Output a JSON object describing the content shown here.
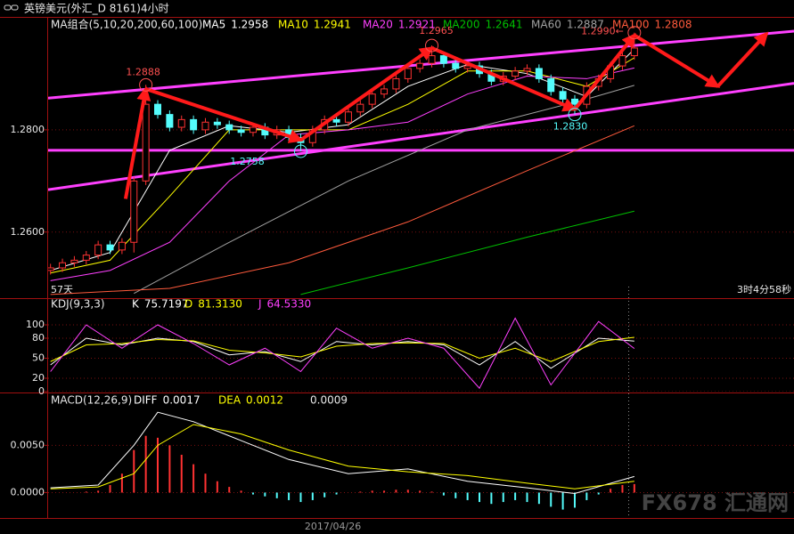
{
  "header": {
    "title": "英镑美元(外汇_D 8161)4小时",
    "status_left": "57天",
    "status_right": "3时4分58秒",
    "watermark": "FX678 汇通网"
  },
  "chart_data": [
    {
      "type": "candlestick",
      "title": "MA组合(5,10,20,200,60,100)",
      "up_color": "#ff3232",
      "down_color": "#54fcfc",
      "open": [
        1.2525,
        1.253,
        1.254,
        1.2545,
        1.2555,
        1.2575,
        1.2565,
        1.258,
        1.27,
        1.285,
        1.283,
        1.2805,
        1.282,
        1.28,
        1.2815,
        1.281,
        1.28,
        1.2795,
        1.2805,
        1.279,
        1.28,
        1.2785,
        1.2775,
        1.28,
        1.282,
        1.2815,
        1.2835,
        1.285,
        1.287,
        1.288,
        1.29,
        1.292,
        1.293,
        1.2945,
        1.293,
        1.292,
        1.2925,
        1.291,
        1.2895,
        1.2905,
        1.2915,
        1.292,
        1.29,
        1.2875,
        1.286,
        1.285,
        1.2885,
        1.29,
        1.2925,
        1.2945
      ],
      "high": [
        1.2538,
        1.2548,
        1.2553,
        1.2563,
        1.2583,
        1.2583,
        1.2588,
        1.2708,
        1.2888,
        1.2858,
        1.2838,
        1.2828,
        1.2828,
        1.2823,
        1.2823,
        1.2818,
        1.2808,
        1.2813,
        1.2813,
        1.2808,
        1.2808,
        1.2793,
        1.2808,
        1.2828,
        1.2828,
        1.2843,
        1.2858,
        1.2878,
        1.2888,
        1.2908,
        1.2928,
        1.2938,
        1.2965,
        1.2953,
        1.2938,
        1.2933,
        1.2933,
        1.2918,
        1.2913,
        1.2923,
        1.2928,
        1.2928,
        1.2908,
        1.2883,
        1.2868,
        1.2893,
        1.2908,
        1.2933,
        1.2953,
        1.299
      ],
      "low": [
        1.2517,
        1.2522,
        1.2532,
        1.2537,
        1.2547,
        1.2557,
        1.2557,
        1.256,
        1.2692,
        1.2822,
        1.2797,
        1.2797,
        1.2792,
        1.2792,
        1.2802,
        1.2792,
        1.2787,
        1.2787,
        1.2782,
        1.2782,
        1.2777,
        1.2758,
        1.2767,
        1.2792,
        1.2807,
        1.2807,
        1.2827,
        1.2842,
        1.2862,
        1.2872,
        1.2892,
        1.2912,
        1.2922,
        1.2922,
        1.2912,
        1.2912,
        1.2902,
        1.2887,
        1.2887,
        1.2897,
        1.2907,
        1.2892,
        1.2867,
        1.2852,
        1.283,
        1.2842,
        1.2877,
        1.2892,
        1.2917,
        1.2937
      ],
      "close": [
        1.253,
        1.254,
        1.2545,
        1.2555,
        1.2575,
        1.2565,
        1.258,
        1.27,
        1.285,
        1.283,
        1.2805,
        1.282,
        1.28,
        1.2815,
        1.281,
        1.28,
        1.2795,
        1.2805,
        1.279,
        1.28,
        1.2785,
        1.2775,
        1.28,
        1.282,
        1.2815,
        1.2835,
        1.285,
        1.287,
        1.288,
        1.29,
        1.292,
        1.293,
        1.2945,
        1.293,
        1.292,
        1.2925,
        1.291,
        1.2895,
        1.2905,
        1.2915,
        1.292,
        1.29,
        1.2875,
        1.286,
        1.285,
        1.2885,
        1.29,
        1.2925,
        1.2945,
        1.296
      ],
      "series": [
        {
          "name": "MA5",
          "color": "#ffffff",
          "x": [
            0,
            5,
            10,
            15,
            20,
            25,
            30,
            35,
            40,
            45,
            49
          ],
          "values": [
            1.2525,
            1.256,
            1.276,
            1.2808,
            1.2795,
            1.281,
            1.2885,
            1.2928,
            1.291,
            1.2865,
            1.2958
          ]
        },
        {
          "name": "MA10",
          "color": "#ffff00",
          "x": [
            0,
            5,
            10,
            15,
            20,
            25,
            30,
            35,
            40,
            45,
            49
          ],
          "values": [
            1.252,
            1.2545,
            1.267,
            1.28,
            1.28,
            1.28,
            1.285,
            1.2915,
            1.2915,
            1.2885,
            1.2941
          ]
        },
        {
          "name": "MA20",
          "color": "#ff40ff",
          "x": [
            0,
            5,
            10,
            15,
            20,
            25,
            30,
            35,
            40,
            45,
            49
          ],
          "values": [
            1.2505,
            1.2525,
            1.258,
            1.27,
            1.279,
            1.28,
            1.2815,
            1.287,
            1.2905,
            1.29,
            1.2921
          ]
        },
        {
          "name": "MA200",
          "color": "#00c000",
          "x": [
            21,
            30,
            40,
            49
          ],
          "values": [
            1.2478,
            1.253,
            1.259,
            1.2641
          ]
        },
        {
          "name": "MA60",
          "color": "#a0a0a0",
          "x": [
            7,
            15,
            25,
            35,
            45,
            49
          ],
          "values": [
            1.248,
            1.258,
            1.27,
            1.28,
            1.286,
            1.2887
          ]
        },
        {
          "name": "MA100",
          "color": "#ff5a3c",
          "x": [
            0,
            10,
            20,
            30,
            40,
            49
          ],
          "values": [
            1.2478,
            1.249,
            1.254,
            1.262,
            1.272,
            1.2808
          ]
        }
      ],
      "trendlines": [
        {
          "color": "#ff40ff",
          "x": [
            -0.2,
            62.4
          ],
          "values": [
            1.2862,
            1.2993
          ]
        },
        {
          "color": "#ff40ff",
          "x": [
            -0.2,
            62.4
          ],
          "values": [
            1.2683,
            1.2891
          ]
        },
        {
          "color": "#ff40ff",
          "x": [
            -0.2,
            62.4
          ],
          "values": [
            1.276,
            1.276
          ]
        }
      ],
      "arrows": {
        "color": "#ff1a1a",
        "x": [
          6.3,
          8,
          21,
          32,
          44,
          49,
          56,
          60.1
        ],
        "values": [
          1.2665,
          1.288,
          1.278,
          1.296,
          1.284,
          1.2985,
          1.2885,
          1.2988
        ]
      },
      "annotations": [
        {
          "label": "1.2888",
          "value": 1.2888,
          "x": 8,
          "color": "#ff5050"
        },
        {
          "label": "1.2758",
          "value": 1.2758,
          "x": 21,
          "color": "#54fcfc"
        },
        {
          "label": "1.2965",
          "value": 1.2965,
          "x": 32,
          "color": "#ff5050"
        },
        {
          "label": "1.2830",
          "value": 1.283,
          "x": 44,
          "color": "#54fcfc"
        },
        {
          "label": "1.2990←",
          "value": 1.299,
          "x": 49,
          "color": "#ff5050"
        }
      ],
      "xlim": [
        -0.2,
        62.4
      ],
      "ylim": [
        1.2476,
        1.2993
      ],
      "yticks": [
        {
          "value": 1.28,
          "label": "1.2800"
        },
        {
          "value": 1.26,
          "label": "1.2600"
        }
      ],
      "grid": true
    },
    {
      "type": "line",
      "title": "KDJ(9,3,3)",
      "series": [
        {
          "name": "K",
          "color": "#ffffff",
          "x": [
            0,
            3,
            6,
            9,
            12,
            15,
            18,
            21,
            24,
            27,
            30,
            33,
            36,
            39,
            42,
            46,
            49
          ],
          "values": [
            40,
            80,
            70,
            80,
            75,
            55,
            60,
            45,
            75,
            70,
            75,
            70,
            40,
            75,
            35,
            80,
            75.7197
          ]
        },
        {
          "name": "D",
          "color": "#ffff00",
          "x": [
            0,
            3,
            6,
            9,
            12,
            15,
            18,
            21,
            24,
            27,
            30,
            33,
            36,
            39,
            42,
            46,
            49
          ],
          "values": [
            45,
            70,
            72,
            78,
            76,
            62,
            58,
            52,
            68,
            72,
            73,
            72,
            50,
            65,
            45,
            75,
            81.313
          ],
          "value_labels": [
            null,
            null,
            null,
            null,
            null,
            null,
            null,
            null,
            null,
            null,
            null,
            null,
            null,
            null,
            null,
            null,
            "81.3130"
          ]
        },
        {
          "name": "J",
          "color": "#ff40ff",
          "x": [
            0,
            3,
            6,
            9,
            12,
            15,
            18,
            21,
            24,
            27,
            30,
            33,
            36,
            39,
            42,
            46,
            49
          ],
          "values": [
            30,
            100,
            65,
            100,
            72,
            40,
            65,
            30,
            95,
            65,
            80,
            65,
            5,
            110,
            10,
            105,
            64.533
          ],
          "value_labels": [
            null,
            null,
            null,
            null,
            null,
            null,
            null,
            null,
            null,
            null,
            null,
            null,
            null,
            null,
            null,
            null,
            "64.5330"
          ]
        }
      ],
      "xlim": [
        -0.2,
        62.4
      ],
      "ylim": [
        0,
        136
      ],
      "yticks": [
        100,
        80,
        50,
        20,
        0
      ],
      "grid": true
    },
    {
      "type": "macd",
      "title": "MACD(12,26,9)",
      "series": [
        {
          "name": "DIFF",
          "color": "#ffffff",
          "x": [
            0,
            4,
            7,
            9,
            12,
            16,
            20,
            25,
            30,
            35,
            40,
            44,
            49
          ],
          "values": [
            0.0005,
            0.0008,
            0.005,
            0.0085,
            0.0075,
            0.0055,
            0.0035,
            0.002,
            0.0025,
            0.0012,
            0.0005,
            -0.0001,
            0.0017
          ]
        },
        {
          "name": "DEA",
          "color": "#ffff00",
          "x": [
            0,
            4,
            7,
            9,
            12,
            16,
            20,
            25,
            30,
            35,
            40,
            44,
            49
          ],
          "values": [
            0.0004,
            0.0006,
            0.002,
            0.005,
            0.0072,
            0.0062,
            0.0045,
            0.0028,
            0.0022,
            0.0018,
            0.001,
            0.0004,
            0.0012
          ]
        }
      ],
      "histogram": {
        "up_color": "#ff3232",
        "down_color": "#54fcfc",
        "values": [
          0,
          0,
          0,
          0.0001,
          0.0002,
          0.0008,
          0.002,
          0.0045,
          0.006,
          0.0058,
          0.005,
          0.004,
          0.003,
          0.002,
          0.0012,
          0.0006,
          0.0002,
          -0.0002,
          -0.0004,
          -0.0006,
          -0.0008,
          -0.001,
          -0.0008,
          -0.0005,
          -0.0002,
          0,
          0.0001,
          0.0002,
          0.0002,
          0.0003,
          0.0003,
          0.0002,
          0.0001,
          -0.0003,
          -0.0006,
          -0.0008,
          -0.001,
          -0.0012,
          -0.001,
          -0.0008,
          -0.001,
          -0.0012,
          -0.0015,
          -0.0018,
          -0.0016,
          -0.0008,
          -0.0002,
          0.0004,
          0.0008,
          0.0009
        ]
      },
      "date_label": {
        "label": "2017/04/26",
        "x": 23.7
      },
      "xlim": [
        -0.2,
        62.4
      ],
      "ylim": [
        -0.0025,
        0.0104
      ],
      "yticks": [
        {
          "value": 0.005,
          "label": "0.0050"
        },
        {
          "value": 0,
          "label": "0.0000"
        }
      ],
      "grid": true
    }
  ]
}
